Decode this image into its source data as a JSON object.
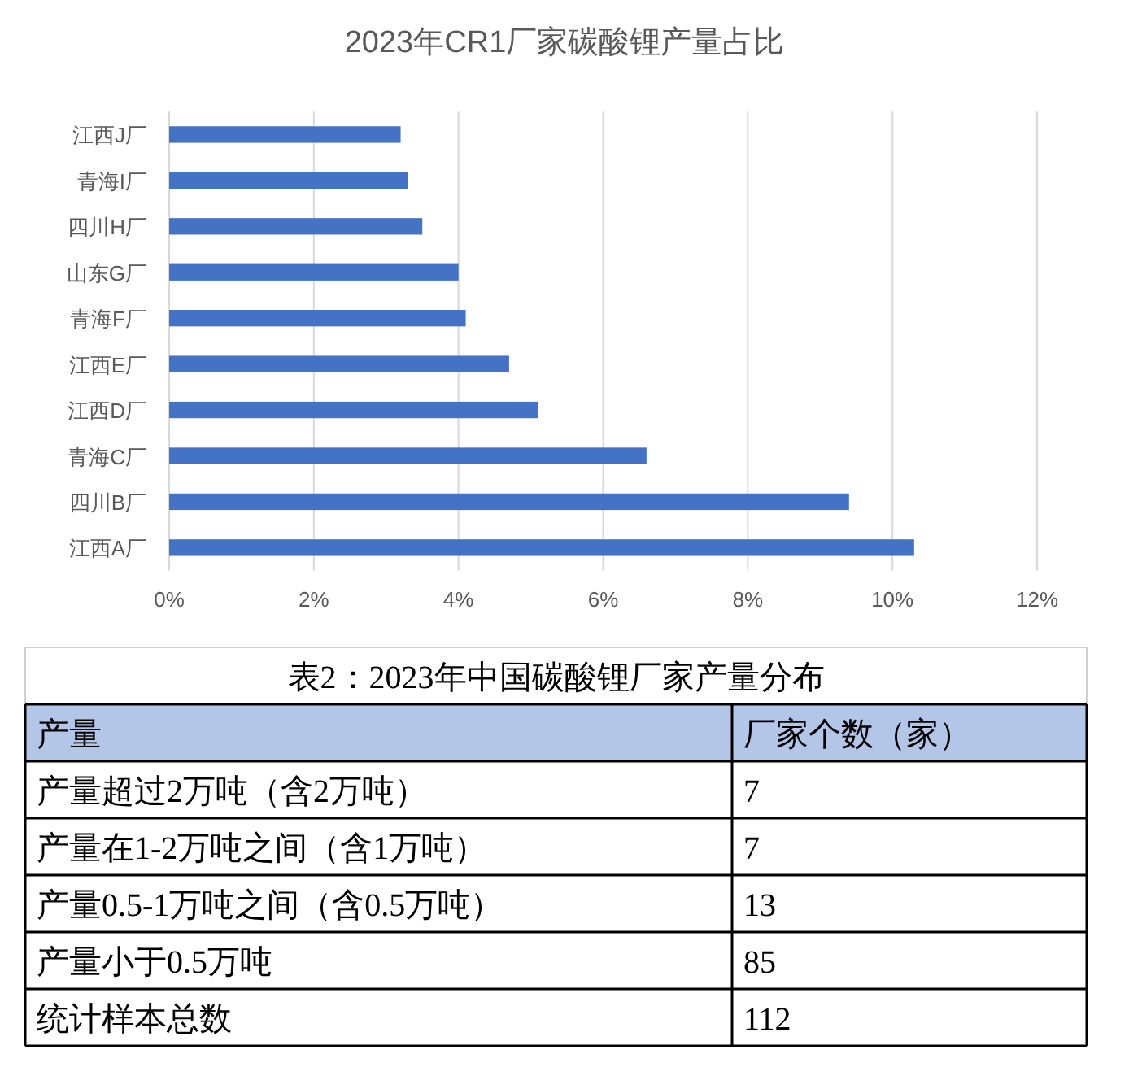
{
  "chart_data": [
    {
      "type": "bar",
      "orientation": "horizontal",
      "title": "2023年CR1厂家碳酸锂产量占比",
      "categories": [
        "江西J厂",
        "青海I厂",
        "四川H厂",
        "山东G厂",
        "青海F厂",
        "江西E厂",
        "江西D厂",
        "青海C厂",
        "四川B厂",
        "江西A厂"
      ],
      "values": [
        3.2,
        3.3,
        3.5,
        4.0,
        4.1,
        4.7,
        5.1,
        6.6,
        9.4,
        10.3
      ],
      "color": "#4472c4",
      "xlim": [
        0,
        12
      ],
      "xticks": [
        {
          "value": 0,
          "label": "0%"
        },
        {
          "value": 2,
          "label": "2%"
        },
        {
          "value": 4,
          "label": "4%"
        },
        {
          "value": 6,
          "label": "6%"
        },
        {
          "value": 8,
          "label": "8%"
        },
        {
          "value": 10,
          "label": "10%"
        },
        {
          "value": 12,
          "label": "12%"
        }
      ],
      "grid": "x"
    },
    {
      "type": "other",
      "title": "表2：2023年中国碳酸锂厂家产量分布",
      "annotations": [
        "产量",
        "厂家个数（家）"
      ],
      "categories": [
        "产量超过2万吨（含2万吨）",
        "产量在1-2万吨之间（含1万吨）",
        "产量0.5-1万吨之间（含0.5万吨）",
        "产量小于0.5万吨",
        "统计样本总数"
      ],
      "values": [
        7,
        7,
        13,
        85,
        112
      ],
      "data_labels": true
    }
  ]
}
